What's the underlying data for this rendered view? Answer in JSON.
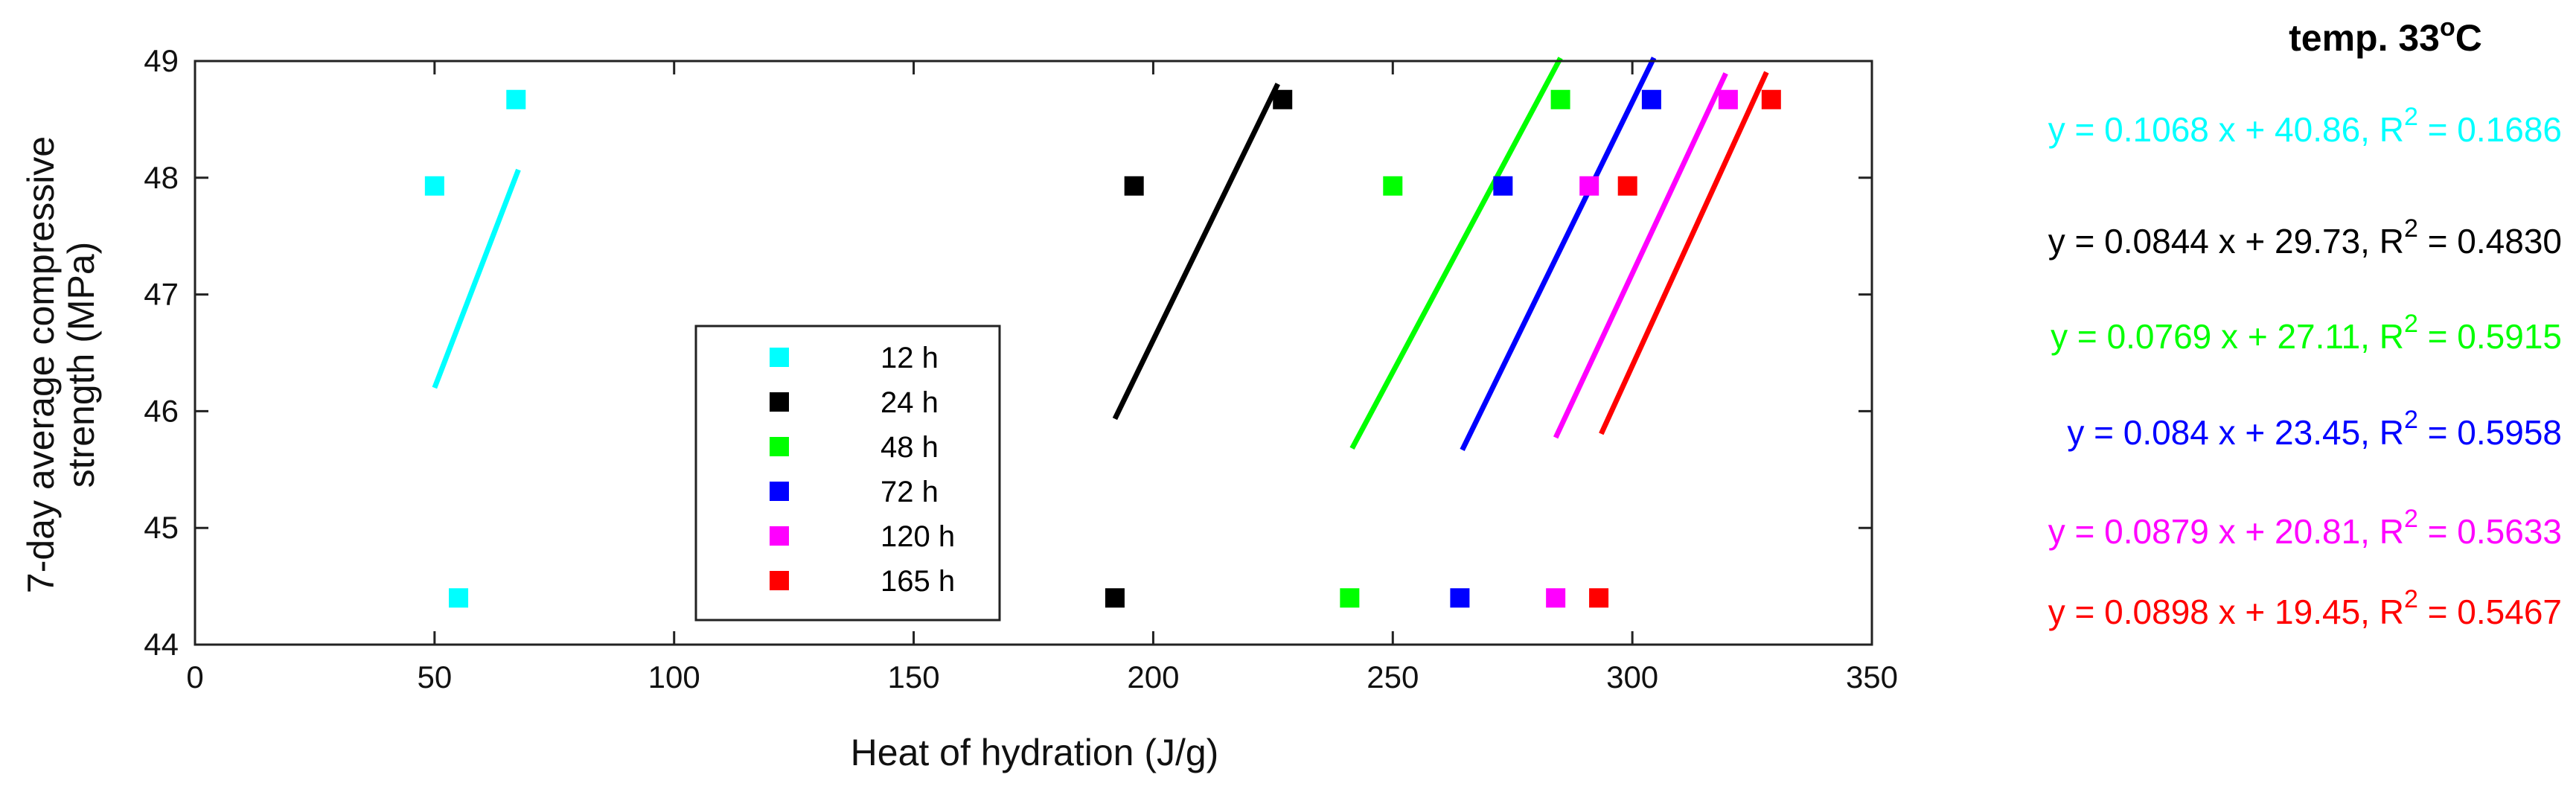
{
  "chart_data": {
    "type": "scatter",
    "title": "temp. 33",
    "title_suffix": "o",
    "title_unit": "C",
    "xlabel": "Heat of hydration (J/g)",
    "ylabel_line1": "7-day average compressive",
    "ylabel_line2": "strength (MPa)",
    "xlim": [
      0,
      350
    ],
    "ylim": [
      44,
      49
    ],
    "xticks": [
      0,
      50,
      100,
      150,
      200,
      250,
      300,
      350
    ],
    "yticks": [
      44,
      45,
      46,
      47,
      48,
      49
    ],
    "grid": false,
    "legend_position": "lower-center",
    "series": [
      {
        "name": "12 h",
        "color": "#00ffff",
        "x": [
          55,
          50,
          67
        ],
        "y": [
          44.4,
          47.93,
          48.67
        ],
        "fit": {
          "slope": 0.1068,
          "intercept": 40.86,
          "x_range": [
            50,
            67.5
          ]
        },
        "equation": "y = 0.1068 x + 40.86, R",
        "r2_sup": "2",
        "r2_value": " = 0.1686"
      },
      {
        "name": "24 h",
        "color": "#000000",
        "x": [
          192,
          196,
          227
        ],
        "y": [
          44.4,
          47.93,
          48.67
        ],
        "fit": {
          "slope": 0.0844,
          "intercept": 29.73,
          "x_range": [
            192,
            226
          ]
        },
        "equation": "y = 0.0844 x + 29.73, R",
        "r2_sup": "2",
        "r2_value": " = 0.4830"
      },
      {
        "name": "48 h",
        "color": "#00ff00",
        "x": [
          241,
          250,
          285
        ],
        "y": [
          44.4,
          47.93,
          48.67
        ],
        "fit": {
          "slope": 0.0769,
          "intercept": 27.11,
          "x_range": [
            241.5,
            285
          ]
        },
        "equation": "y = 0.0769 x + 27.11, R",
        "r2_sup": "2",
        "r2_value": " = 0.5915"
      },
      {
        "name": "72 h",
        "color": "#0000ff",
        "x": [
          264,
          273,
          304
        ],
        "y": [
          44.4,
          47.93,
          48.67
        ],
        "fit": {
          "slope": 0.084,
          "intercept": 23.45,
          "x_range": [
            264.5,
            304.5
          ]
        },
        "equation": "y = 0.084 x + 23.45, R",
        "r2_sup": "2",
        "r2_value": " = 0.5958"
      },
      {
        "name": "120 h",
        "color": "#ff00ff",
        "x": [
          284,
          291,
          320
        ],
        "y": [
          44.4,
          47.93,
          48.67
        ],
        "fit": {
          "slope": 0.0879,
          "intercept": 20.81,
          "x_range": [
            284,
            319.5
          ]
        },
        "equation": "y = 0.0879 x + 20.81, R",
        "r2_sup": "2",
        "r2_value": " = 0.5633"
      },
      {
        "name": "165 h",
        "color": "#ff0000",
        "x": [
          293,
          299,
          329
        ],
        "y": [
          44.4,
          47.93,
          48.67
        ],
        "fit": {
          "slope": 0.0898,
          "intercept": 19.45,
          "x_range": [
            293.5,
            328
          ]
        },
        "equation": "y = 0.0898 x + 19.45, R",
        "r2_sup": "2",
        "r2_value": " = 0.5467"
      }
    ]
  }
}
